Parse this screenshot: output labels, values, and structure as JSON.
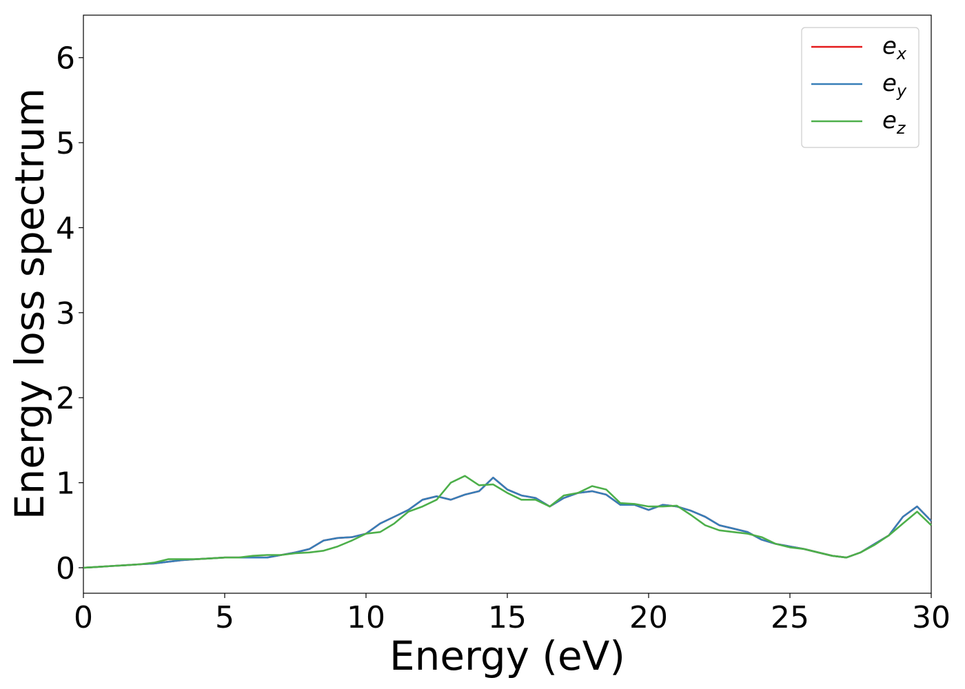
{
  "chart_data": {
    "type": "line",
    "title": "",
    "xlabel": "Energy (eV)",
    "ylabel": "Energy loss spectrum",
    "xlim": [
      0,
      30
    ],
    "ylim": [
      -0.3,
      6.5
    ],
    "xticks": [
      0,
      5,
      10,
      15,
      20,
      25,
      30
    ],
    "yticks": [
      0,
      1,
      2,
      3,
      4,
      5,
      6
    ],
    "xtick_labels": [
      "0",
      "5",
      "10",
      "15",
      "20",
      "25",
      "30"
    ],
    "ytick_labels": [
      "0",
      "1",
      "2",
      "3",
      "4",
      "5",
      "6"
    ],
    "grid": false,
    "legend_position": "top-right",
    "series": [
      {
        "name": "e_x",
        "label_base": "e",
        "label_sub": "x",
        "color": "#e41a1c",
        "x": [
          0,
          0.5,
          1,
          1.5,
          2,
          2.5,
          3,
          3.5,
          4,
          4.5,
          5,
          5.5,
          6,
          6.5,
          7,
          7.5,
          8,
          8.5,
          9,
          9.5,
          10,
          10.5,
          11,
          11.5,
          12,
          12.5,
          13,
          13.5,
          14,
          14.5,
          15,
          15.5,
          16,
          16.5,
          17,
          17.5,
          18,
          18.5,
          19,
          19.5,
          20,
          20.5,
          21,
          21.5,
          22,
          22.5,
          23,
          23.5,
          24,
          24.5,
          25,
          25.5,
          26,
          26.5,
          27,
          27.5,
          28,
          28.5,
          29,
          29.5,
          30
        ],
        "y": [
          0,
          0.01,
          0.02,
          0.03,
          0.04,
          0.05,
          0.07,
          0.09,
          0.1,
          0.11,
          0.12,
          0.12,
          0.12,
          0.12,
          0.15,
          0.18,
          0.22,
          0.32,
          0.35,
          0.36,
          0.4,
          0.52,
          0.6,
          0.68,
          0.8,
          0.84,
          0.8,
          0.86,
          0.9,
          1.06,
          0.92,
          0.85,
          0.82,
          0.72,
          0.82,
          0.88,
          0.9,
          0.86,
          0.74,
          0.74,
          0.68,
          0.74,
          0.72,
          0.67,
          0.6,
          0.5,
          0.46,
          0.42,
          0.33,
          0.28,
          0.25,
          0.22,
          0.18,
          0.14,
          0.12,
          0.18,
          0.28,
          0.38,
          0.6,
          0.72,
          0.55
        ]
      },
      {
        "name": "e_y",
        "label_base": "e",
        "label_sub": "y",
        "color": "#377eb8",
        "x": [
          0,
          0.5,
          1,
          1.5,
          2,
          2.5,
          3,
          3.5,
          4,
          4.5,
          5,
          5.5,
          6,
          6.5,
          7,
          7.5,
          8,
          8.5,
          9,
          9.5,
          10,
          10.5,
          11,
          11.5,
          12,
          12.5,
          13,
          13.5,
          14,
          14.5,
          15,
          15.5,
          16,
          16.5,
          17,
          17.5,
          18,
          18.5,
          19,
          19.5,
          20,
          20.5,
          21,
          21.5,
          22,
          22.5,
          23,
          23.5,
          24,
          24.5,
          25,
          25.5,
          26,
          26.5,
          27,
          27.5,
          28,
          28.5,
          29,
          29.5,
          30
        ],
        "y": [
          0,
          0.01,
          0.02,
          0.03,
          0.04,
          0.05,
          0.07,
          0.09,
          0.1,
          0.11,
          0.12,
          0.12,
          0.12,
          0.12,
          0.15,
          0.18,
          0.22,
          0.32,
          0.35,
          0.36,
          0.4,
          0.52,
          0.6,
          0.68,
          0.8,
          0.84,
          0.8,
          0.86,
          0.9,
          1.06,
          0.92,
          0.85,
          0.82,
          0.72,
          0.82,
          0.88,
          0.9,
          0.86,
          0.74,
          0.74,
          0.68,
          0.74,
          0.72,
          0.67,
          0.6,
          0.5,
          0.46,
          0.42,
          0.33,
          0.28,
          0.25,
          0.22,
          0.18,
          0.14,
          0.12,
          0.18,
          0.28,
          0.38,
          0.6,
          0.72,
          0.55
        ]
      },
      {
        "name": "e_z",
        "label_base": "e",
        "label_sub": "z",
        "color": "#4daf4a",
        "x": [
          0,
          0.5,
          1,
          1.5,
          2,
          2.5,
          3,
          3.5,
          4,
          4.5,
          5,
          5.5,
          6,
          6.5,
          7,
          7.5,
          8,
          8.5,
          9,
          9.5,
          10,
          10.5,
          11,
          11.5,
          12,
          12.5,
          13,
          13.5,
          14,
          14.5,
          15,
          15.5,
          16,
          16.5,
          17,
          17.5,
          18,
          18.5,
          19,
          19.5,
          20,
          20.5,
          21,
          21.5,
          22,
          22.5,
          23,
          23.5,
          24,
          24.5,
          25,
          25.5,
          26,
          26.5,
          27,
          27.5,
          28,
          28.5,
          29,
          29.5,
          30
        ],
        "y": [
          0,
          0.01,
          0.02,
          0.03,
          0.04,
          0.06,
          0.1,
          0.1,
          0.1,
          0.11,
          0.12,
          0.12,
          0.14,
          0.15,
          0.15,
          0.17,
          0.18,
          0.2,
          0.25,
          0.32,
          0.4,
          0.42,
          0.52,
          0.66,
          0.72,
          0.8,
          1.0,
          1.08,
          0.97,
          0.98,
          0.88,
          0.8,
          0.8,
          0.72,
          0.85,
          0.88,
          0.96,
          0.92,
          0.76,
          0.75,
          0.72,
          0.72,
          0.73,
          0.62,
          0.5,
          0.44,
          0.42,
          0.4,
          0.36,
          0.28,
          0.24,
          0.22,
          0.18,
          0.14,
          0.12,
          0.18,
          0.27,
          0.38,
          0.52,
          0.66,
          0.5
        ]
      }
    ]
  }
}
